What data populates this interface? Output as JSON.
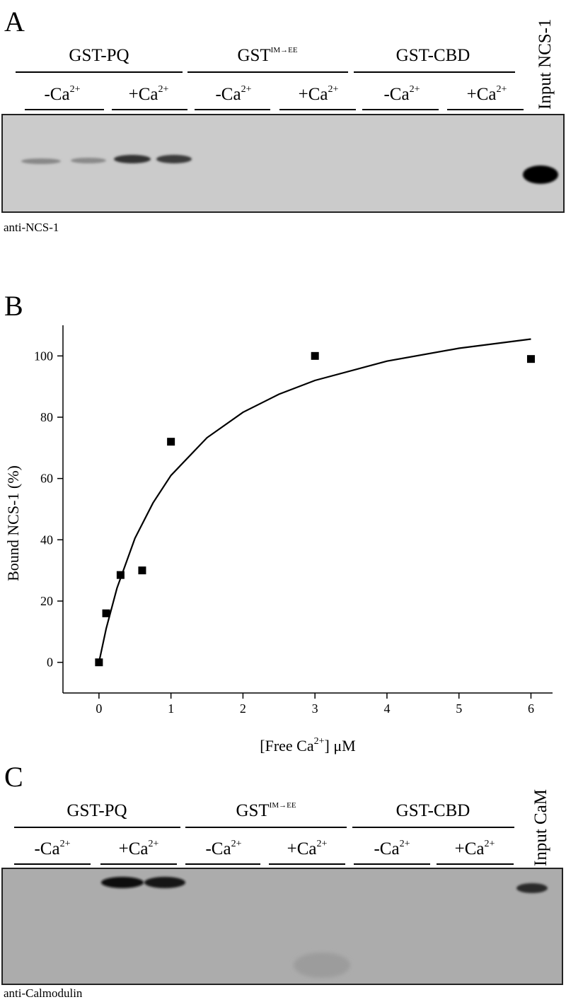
{
  "panel_a": {
    "letter": "A",
    "groups": [
      {
        "name": "GST-PQ"
      },
      {
        "name": "GST",
        "sup": "IM→EE"
      },
      {
        "name": "GST-CBD"
      }
    ],
    "conditions": [
      {
        "text": "-Ca",
        "sup": "2+"
      },
      {
        "text": "+Ca",
        "sup": "2+"
      },
      {
        "text": "-Ca",
        "sup": "2+"
      },
      {
        "text": "+Ca",
        "sup": "2+"
      },
      {
        "text": "-Ca",
        "sup": "2+"
      },
      {
        "text": "+Ca",
        "sup": "2+"
      }
    ],
    "input": "Input NCS-1",
    "antibody": "anti-NCS-1"
  },
  "panel_b": {
    "letter": "B"
  },
  "chart_data": {
    "type": "scatter",
    "ylabel": "Bound NCS-1 (%)",
    "xlabel": {
      "before": "[Free Ca",
      "sup": "2+",
      "after": "] μM"
    },
    "xlim": [
      -0.5,
      6.3
    ],
    "ylim": [
      -10,
      110
    ],
    "xticks": [
      0,
      1,
      2,
      3,
      4,
      5,
      6
    ],
    "yticks": [
      0,
      20,
      40,
      60,
      80,
      100
    ],
    "points": {
      "color": "#000000",
      "x": [
        0,
        0.1,
        0.3,
        0.6,
        1,
        3,
        6
      ],
      "values": [
        0,
        16,
        28.5,
        30,
        72,
        100,
        99
      ]
    },
    "fit": {
      "color": "#000000",
      "x": [
        0,
        0.1,
        0.25,
        0.5,
        0.75,
        1,
        1.5,
        2,
        2.5,
        3,
        4,
        5,
        6
      ],
      "values": [
        0,
        11,
        24.2,
        40.5,
        52,
        61,
        73.3,
        81.6,
        87.5,
        92,
        98.3,
        102.5,
        105.5
      ]
    }
  },
  "panel_c": {
    "letter": "C",
    "groups": [
      {
        "name": "GST-PQ"
      },
      {
        "name": "GST",
        "sup": "IM→EE"
      },
      {
        "name": "GST-CBD"
      }
    ],
    "conditions": [
      {
        "text": "-Ca",
        "sup": "2+"
      },
      {
        "text": "+Ca",
        "sup": "2+"
      },
      {
        "text": "-Ca",
        "sup": "2+"
      },
      {
        "text": "+Ca",
        "sup": "2+"
      },
      {
        "text": "-Ca",
        "sup": "2+"
      },
      {
        "text": "+Ca",
        "sup": "2+"
      }
    ],
    "input": "Input CaM",
    "antibody": "anti-Calmodulin"
  }
}
